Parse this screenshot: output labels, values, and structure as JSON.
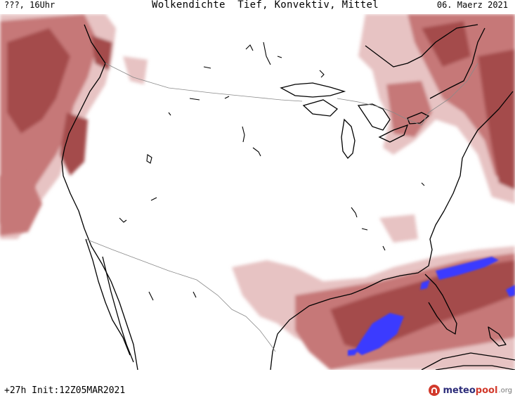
{
  "header": {
    "valid_time": "???, 16Uhr",
    "title": "Wolkendichte  Tief, Konvektiv, Mittel",
    "date": "06. Maerz 2021"
  },
  "footer": {
    "run_info": "+27h  Init:12Z05MAR2021",
    "logo_part1": "meteo",
    "logo_part2": "pool",
    "logo_part3": ".org",
    "logo_icon": "meteopool-globe-icon"
  },
  "colors": {
    "background": "#ffffff",
    "cloud_low": "#e7c3c3",
    "cloud_mid": "#c67878",
    "cloud_high": "#a44b4b",
    "convective": "#3a3aff",
    "coastline": "#000000",
    "borders": "#8a8a8a"
  },
  "map": {
    "region": "Nordamerika",
    "layer": "Wolkendichte Tief, Konvektiv, Mittel"
  }
}
